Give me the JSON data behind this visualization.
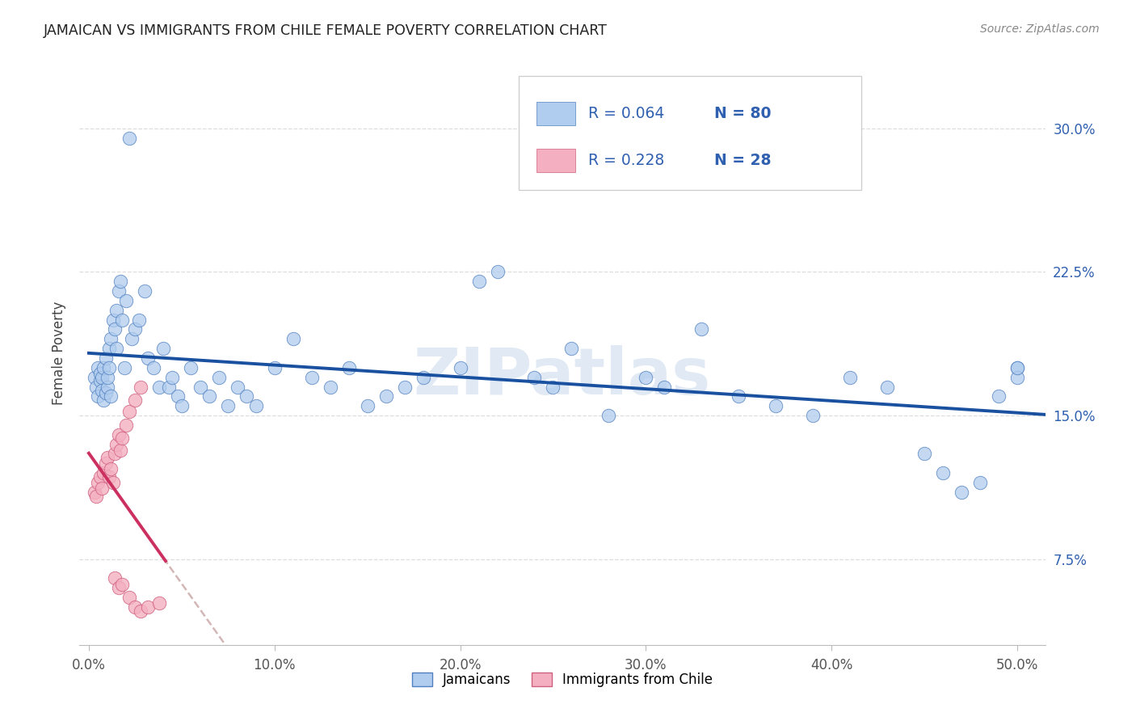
{
  "title": "JAMAICAN VS IMMIGRANTS FROM CHILE FEMALE POVERTY CORRELATION CHART",
  "source": "Source: ZipAtlas.com",
  "ylabel": "Female Poverty",
  "ytick_labels": [
    "7.5%",
    "15.0%",
    "22.5%",
    "30.0%"
  ],
  "ytick_vals": [
    0.075,
    0.15,
    0.225,
    0.3
  ],
  "xtick_labels": [
    "0.0%",
    "10.0%",
    "20.0%",
    "30.0%",
    "40.0%",
    "50.0%"
  ],
  "xtick_vals": [
    0.0,
    0.1,
    0.2,
    0.3,
    0.4,
    0.5
  ],
  "xlim": [
    -0.005,
    0.515
  ],
  "ylim": [
    0.03,
    0.335
  ],
  "color_blue_fill": "#b0ccee",
  "color_blue_edge": "#5080c0",
  "color_pink_fill": "#f4b0c0",
  "color_pink_edge": "#d06080",
  "line_blue": "#1a50a0",
  "line_pink": "#cc3060",
  "line_dashed_color": "#ccaaaa",
  "watermark_color": "#c8d8ec",
  "title_color": "#222222",
  "source_color": "#888888",
  "tick_color_right": "#3060b0",
  "grid_color": "#dddddd",
  "legend_text_color": "#3060b0",
  "background": "#ffffff",
  "jamaicans_x": [
    0.003,
    0.004,
    0.005,
    0.005,
    0.006,
    0.006,
    0.007,
    0.007,
    0.008,
    0.008,
    0.009,
    0.009,
    0.01,
    0.01,
    0.011,
    0.011,
    0.012,
    0.012,
    0.013,
    0.014,
    0.015,
    0.015,
    0.016,
    0.017,
    0.018,
    0.019,
    0.02,
    0.022,
    0.023,
    0.025,
    0.027,
    0.03,
    0.032,
    0.035,
    0.038,
    0.04,
    0.043,
    0.045,
    0.048,
    0.05,
    0.055,
    0.06,
    0.065,
    0.07,
    0.075,
    0.08,
    0.085,
    0.09,
    0.1,
    0.11,
    0.12,
    0.13,
    0.14,
    0.15,
    0.16,
    0.17,
    0.18,
    0.2,
    0.21,
    0.22,
    0.24,
    0.25,
    0.26,
    0.28,
    0.3,
    0.31,
    0.33,
    0.35,
    0.37,
    0.39,
    0.41,
    0.43,
    0.45,
    0.46,
    0.47,
    0.48,
    0.49,
    0.5,
    0.5,
    0.5
  ],
  "jamaicans_y": [
    0.17,
    0.165,
    0.175,
    0.16,
    0.168,
    0.172,
    0.163,
    0.17,
    0.158,
    0.175,
    0.162,
    0.18,
    0.165,
    0.17,
    0.175,
    0.185,
    0.19,
    0.16,
    0.2,
    0.195,
    0.205,
    0.185,
    0.215,
    0.22,
    0.2,
    0.175,
    0.21,
    0.295,
    0.19,
    0.195,
    0.2,
    0.215,
    0.18,
    0.175,
    0.165,
    0.185,
    0.165,
    0.17,
    0.16,
    0.155,
    0.175,
    0.165,
    0.16,
    0.17,
    0.155,
    0.165,
    0.16,
    0.155,
    0.175,
    0.19,
    0.17,
    0.165,
    0.175,
    0.155,
    0.16,
    0.165,
    0.17,
    0.175,
    0.22,
    0.225,
    0.17,
    0.165,
    0.185,
    0.15,
    0.17,
    0.165,
    0.195,
    0.16,
    0.155,
    0.15,
    0.17,
    0.165,
    0.13,
    0.12,
    0.11,
    0.115,
    0.16,
    0.175,
    0.17,
    0.175
  ],
  "chile_x": [
    0.003,
    0.004,
    0.005,
    0.006,
    0.007,
    0.008,
    0.009,
    0.01,
    0.011,
    0.012,
    0.013,
    0.014,
    0.015,
    0.016,
    0.017,
    0.018,
    0.02,
    0.022,
    0.025,
    0.028,
    0.014,
    0.016,
    0.018,
    0.022,
    0.025,
    0.028,
    0.032,
    0.038
  ],
  "chile_y": [
    0.11,
    0.108,
    0.115,
    0.118,
    0.112,
    0.12,
    0.125,
    0.128,
    0.118,
    0.122,
    0.115,
    0.13,
    0.135,
    0.14,
    0.132,
    0.138,
    0.145,
    0.152,
    0.158,
    0.165,
    0.065,
    0.06,
    0.062,
    0.055,
    0.05,
    0.048,
    0.05,
    0.052
  ]
}
